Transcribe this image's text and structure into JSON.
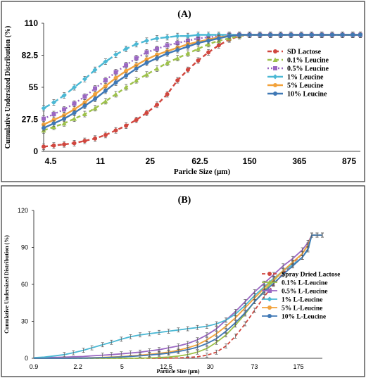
{
  "chart_data": [
    {
      "type": "line",
      "title": "(A)",
      "xlabel": "Paricle Size (µm)",
      "ylabel": "Cumulative Undersized Distribution (%)",
      "x_ticks": [
        "4.5",
        "11",
        "25",
        "62.5",
        "150",
        "365",
        "875"
      ],
      "y_ticks": [
        "0",
        "27.5",
        "55",
        "82.5",
        "110"
      ],
      "ylim": [
        0,
        110
      ],
      "grid": false,
      "legend_position": "right",
      "x": [
        5.5,
        6.5,
        7.7,
        9.1,
        10.8,
        12.8,
        15.2,
        18,
        21.3,
        25.2,
        29.9,
        35.4,
        41.9,
        49.6,
        58.8,
        69.6,
        82.4,
        97.7,
        116,
        137,
        162,
        192,
        228,
        270,
        320,
        379,
        449,
        531,
        629,
        745,
        883,
        1000
      ],
      "series": [
        {
          "name": "SD Lactose",
          "color": "#d0463e",
          "dash": "6,4",
          "values": [
            4,
            5,
            6,
            7,
            9,
            11,
            14,
            18,
            22,
            27,
            33,
            40,
            49,
            61,
            70,
            78,
            85,
            91,
            96,
            99,
            100,
            100,
            100,
            100,
            100,
            100,
            100,
            100,
            100,
            100,
            100,
            100
          ]
        },
        {
          "name": "0.1% Leucine",
          "color": "#9dc14a",
          "dash": "6,4",
          "values": [
            18,
            21,
            24,
            28,
            32,
            37,
            43,
            49,
            55,
            61,
            66,
            71,
            76,
            80,
            84,
            88,
            92,
            95,
            97,
            99,
            100,
            100,
            100,
            100,
            100,
            100,
            100,
            100,
            100,
            100,
            100,
            100
          ]
        },
        {
          "name": "0.5% Leucine",
          "color": "#9a67c2",
          "dash": "2,3",
          "values": [
            28,
            32,
            36,
            41,
            47,
            54,
            61,
            68,
            74,
            80,
            85,
            88,
            91,
            93,
            95,
            97,
            98,
            99,
            100,
            100,
            100,
            100,
            100,
            100,
            100,
            100,
            100,
            100,
            100,
            100,
            100,
            100
          ]
        },
        {
          "name": "1% Leucine",
          "color": "#4bb8d4",
          "dash": "10,4",
          "values": [
            37,
            42,
            48,
            55,
            62,
            70,
            77,
            83,
            88,
            92,
            95,
            97,
            98,
            99,
            99,
            100,
            100,
            100,
            100,
            100,
            100,
            100,
            100,
            100,
            100,
            100,
            100,
            100,
            100,
            100,
            100,
            100
          ]
        },
        {
          "name": "5% Leucine",
          "color": "#f2a23b",
          "dash": "",
          "values": [
            23,
            27,
            31,
            36,
            42,
            49,
            56,
            63,
            69,
            74,
            79,
            83,
            86,
            89,
            92,
            94,
            96,
            98,
            99,
            100,
            100,
            100,
            100,
            100,
            100,
            100,
            100,
            100,
            100,
            100,
            100,
            100
          ]
        },
        {
          "name": "10% Leucine",
          "color": "#3f78b5",
          "dash": "",
          "values": [
            20,
            24,
            28,
            33,
            39,
            45,
            52,
            59,
            65,
            71,
            76,
            80,
            84,
            87,
            90,
            93,
            95,
            97,
            99,
            100,
            100,
            100,
            100,
            100,
            100,
            100,
            100,
            100,
            100,
            100,
            100,
            100
          ]
        }
      ]
    },
    {
      "type": "line",
      "title": "(B)",
      "xlabel": "Particle Size (µm)",
      "ylabel": "Cumulative Undersized Distribution (%)",
      "x_ticks": [
        "0.9",
        "2.2",
        "5",
        "12.5",
        "30",
        "73",
        "175"
      ],
      "y_ticks": [
        "0",
        "30",
        "60",
        "90",
        "120"
      ],
      "ylim": [
        0,
        120
      ],
      "grid": false,
      "legend_position": "right",
      "x": [
        0.9,
        1.1,
        1.3,
        1.6,
        1.9,
        2.3,
        2.7,
        3.3,
        3.9,
        4.7,
        5.6,
        6.7,
        8,
        9.6,
        11.5,
        13.8,
        16.5,
        19.8,
        23.7,
        28.4,
        34,
        40.7,
        48.8,
        58.4,
        70,
        83.8,
        100,
        120,
        144,
        160,
        172,
        190,
        210
      ],
      "series": [
        {
          "name": "Spray Dried Lactose",
          "color": "#d0463e",
          "dash": "5,3",
          "values": [
            0,
            0,
            0,
            0,
            0,
            0,
            0,
            0,
            0,
            0,
            0,
            0,
            0,
            0,
            0.1,
            0.3,
            0.6,
            1.2,
            2.5,
            5,
            10,
            18,
            28,
            39,
            50,
            60,
            69,
            77,
            85,
            92,
            100,
            100,
            100
          ]
        },
        {
          "name": "0.1% L-Leucine",
          "color": "#9dc14a",
          "dash": "",
          "values": [
            0,
            0,
            0,
            0,
            0,
            0,
            0,
            0,
            0,
            0,
            0,
            0.1,
            0.3,
            0.6,
            1,
            1.8,
            3,
            5,
            8,
            13,
            19,
            27,
            36,
            46,
            55,
            63,
            71,
            78,
            85,
            92,
            100,
            100,
            100
          ]
        },
        {
          "name": "0.5% L-Leucine",
          "color": "#9a67c2",
          "dash": "",
          "values": [
            0.3,
            0.5,
            0.7,
            0.9,
            1.2,
            1.5,
            2,
            2.5,
            3,
            3.6,
            4.3,
            5,
            6,
            7,
            8.5,
            10,
            12,
            15,
            19,
            24,
            31,
            38,
            46,
            54,
            61,
            68,
            75,
            81,
            88,
            94,
            100,
            100,
            100
          ]
        },
        {
          "name": "1% L-Leucine",
          "color": "#4bb8d4",
          "dash": "",
          "values": [
            0.5,
            1,
            1.8,
            3,
            4.5,
            6.5,
            8.5,
            11,
            13,
            15.5,
            17.5,
            19,
            20,
            21,
            22,
            23,
            24,
            25,
            26,
            28,
            31,
            36,
            43,
            51,
            58,
            65,
            71,
            76,
            82,
            88,
            100,
            100,
            100
          ]
        },
        {
          "name": "5% L-Leucine",
          "color": "#f2a23b",
          "dash": "",
          "values": [
            0,
            0,
            0,
            0.1,
            0.2,
            0.3,
            0.5,
            0.7,
            1,
            1.4,
            1.9,
            2.5,
            3.2,
            4,
            5,
            6.5,
            8.5,
            11,
            15,
            20,
            26,
            33,
            41,
            49,
            57,
            64,
            71,
            78,
            85,
            92,
            100,
            100,
            100
          ]
        },
        {
          "name": "10% L-Leucine",
          "color": "#3f78b5",
          "dash": "",
          "values": [
            0,
            0,
            0,
            0,
            0.1,
            0.2,
            0.3,
            0.5,
            0.8,
            1.1,
            1.5,
            2,
            2.6,
            3.3,
            4.2,
            5.5,
            7,
            9,
            12,
            16,
            22,
            29,
            37,
            46,
            54,
            61,
            68,
            75,
            82,
            89,
            100,
            100,
            100
          ]
        }
      ]
    }
  ]
}
